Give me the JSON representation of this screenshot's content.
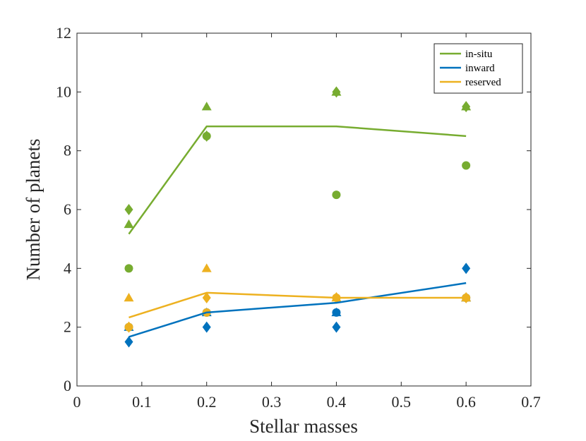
{
  "chart_data": {
    "type": "line",
    "xlabel": "Stellar masses",
    "ylabel": "Number of planets",
    "xlim": [
      0,
      0.7
    ],
    "ylim": [
      0,
      12
    ],
    "x_ticks": [
      "0",
      "0.1",
      "0.2",
      "0.3",
      "0.4",
      "0.5",
      "0.6",
      "0.7"
    ],
    "y_ticks": [
      "0",
      "2",
      "4",
      "6",
      "8",
      "10",
      "12"
    ],
    "x": [
      0.08,
      0.2,
      0.4,
      0.6
    ],
    "grid": false,
    "legend_location": "top-right",
    "series": [
      {
        "name": "in-situ",
        "color": "#77AC30",
        "line": [
          5.17,
          8.83,
          8.83,
          8.5
        ],
        "markers": {
          "circle": [
            4,
            8.5,
            6.5,
            7.5
          ],
          "triangle": [
            5.5,
            9.5,
            10,
            9.5
          ],
          "diamond": [
            6,
            8.5,
            10,
            9.5
          ]
        }
      },
      {
        "name": "inward",
        "color": "#0072BD",
        "line": [
          1.67,
          2.5,
          2.83,
          3.5
        ],
        "markers": {
          "circle": [
            2,
            2.5,
            2.5,
            3
          ],
          "triangle": [
            2,
            2.5,
            2.5,
            3
          ],
          "diamond": [
            1.5,
            2,
            2,
            4
          ]
        }
      },
      {
        "name": "reserved",
        "color": "#EDB120",
        "line": [
          2.33,
          3.17,
          3,
          3
        ],
        "markers": {
          "circle": [
            2,
            2.5,
            3,
            3
          ],
          "triangle": [
            3,
            4,
            3,
            3
          ],
          "diamond": [
            2,
            3,
            3,
            3
          ]
        }
      }
    ]
  }
}
